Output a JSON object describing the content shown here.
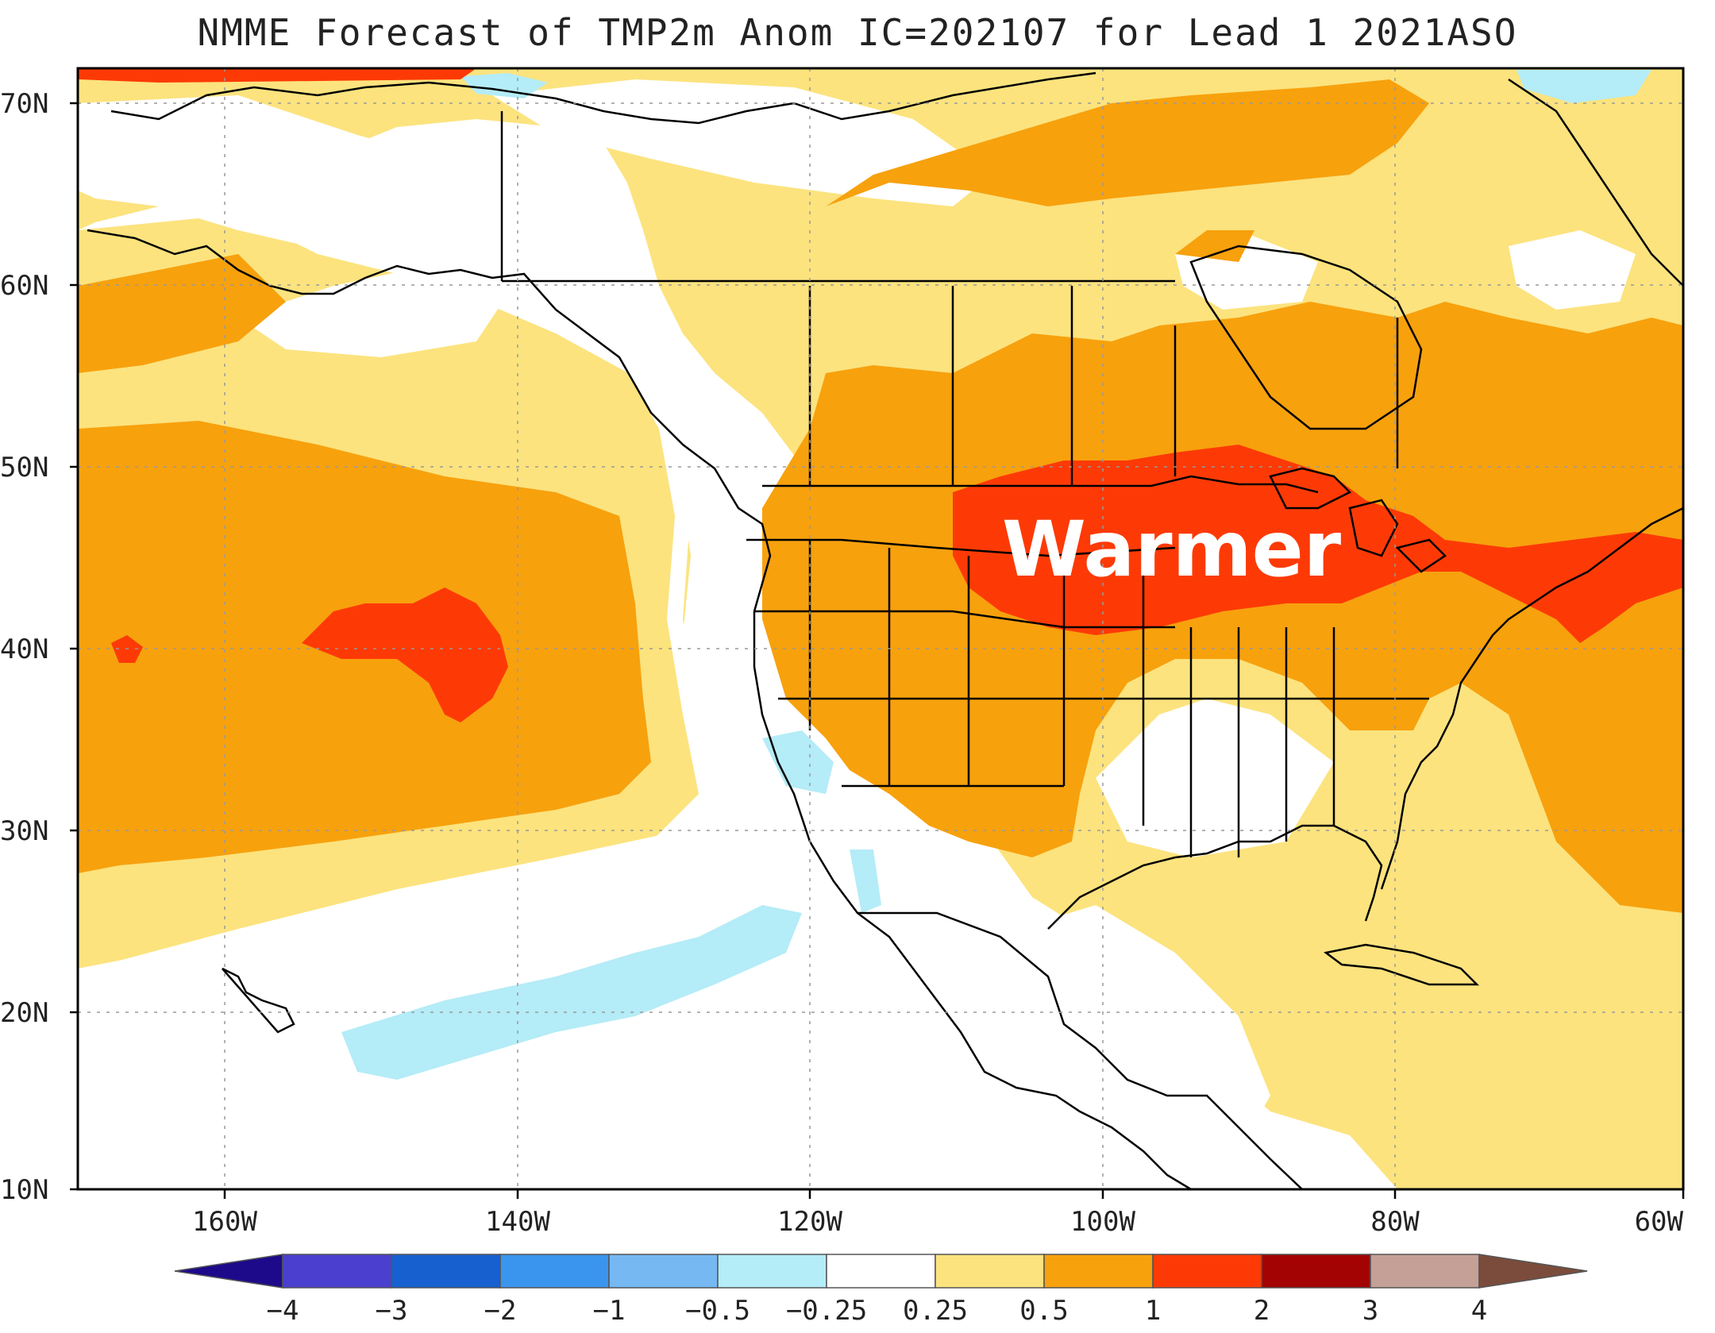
{
  "title": "NMME Forecast of TMP2m Anom IC=202107 for Lead 1 2021ASO",
  "annotation": "Warmer",
  "latitude_labels": [
    "70N",
    "60N",
    "50N",
    "40N",
    "30N",
    "20N",
    "10N"
  ],
  "longitude_labels": [
    "160W",
    "140W",
    "120W",
    "100W",
    "80W",
    "60W"
  ],
  "colorbar": {
    "labels": [
      "-4",
      "-3",
      "-2",
      "-1",
      "-0.5",
      "-0.25",
      "0.25",
      "0.5",
      "1",
      "2",
      "3",
      "4"
    ],
    "colors": [
      "#1d0a8a",
      "#4a3fcf",
      "#1660d0",
      "#3a95ee",
      "#75b8f2",
      "#b4ecf7",
      "#ffffff",
      "#fce37e",
      "#f7a10d",
      "#fd3a06",
      "#a30303",
      "#c4a096",
      "#7b4c3b"
    ]
  },
  "colors": {
    "light_yellow": "#fce37e",
    "orange": "#f7a10d",
    "red_orange": "#fd3a06",
    "light_blue": "#b4ecf7"
  }
}
